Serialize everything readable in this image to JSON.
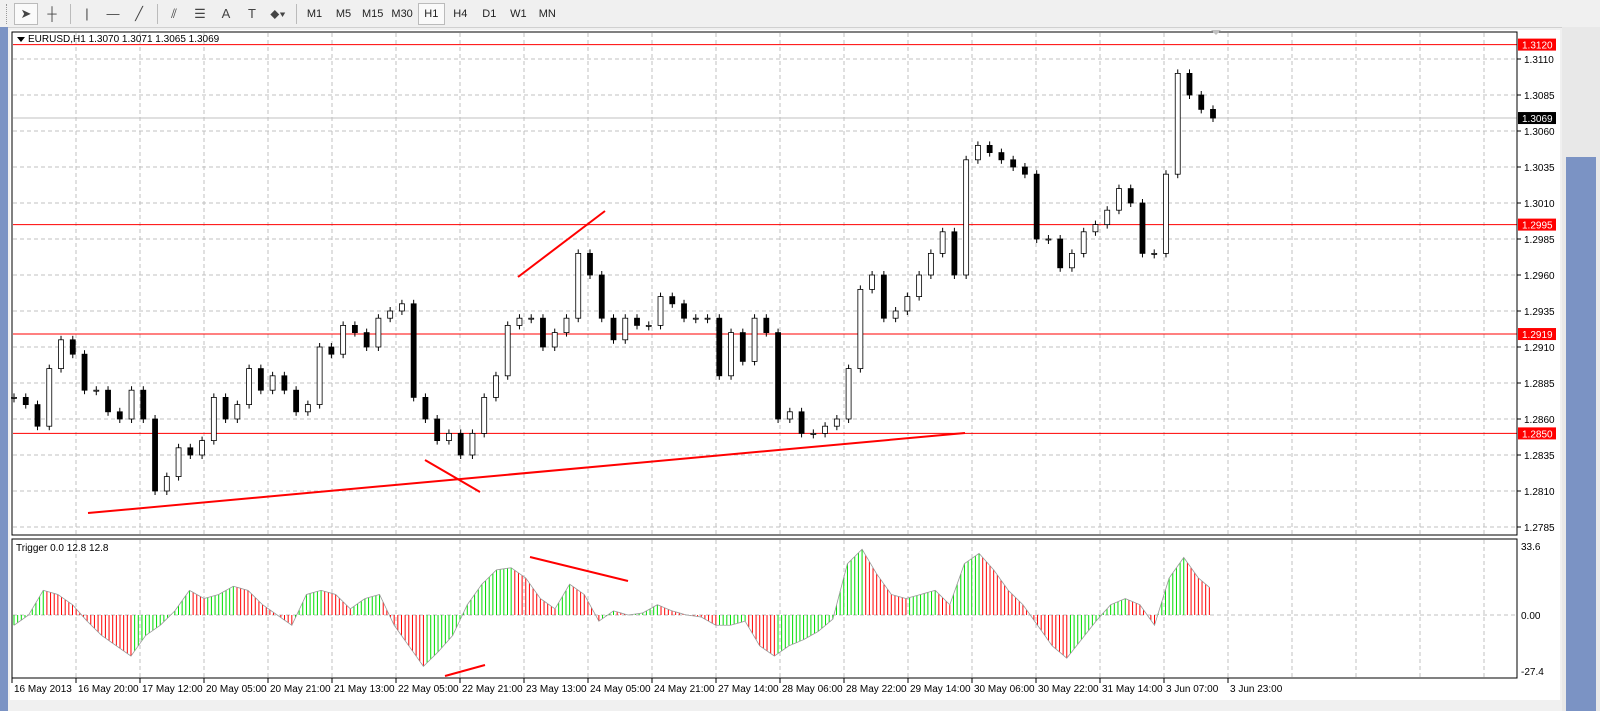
{
  "toolbar": {
    "tools": [
      {
        "name": "cursor-icon",
        "glyph": "➤"
      },
      {
        "name": "crosshair-icon",
        "glyph": "┼"
      },
      {
        "name": "vertical-line-icon",
        "glyph": "|"
      },
      {
        "name": "horizontal-line-icon",
        "glyph": "—"
      },
      {
        "name": "trendline-icon",
        "glyph": "╱"
      },
      {
        "name": "equidistant-channel-icon",
        "glyph": "⫽"
      },
      {
        "name": "fibonacci-icon",
        "glyph": "☰"
      },
      {
        "name": "text-icon",
        "glyph": "A"
      },
      {
        "name": "text-label-icon",
        "glyph": "T"
      },
      {
        "name": "arrows-dropdown-icon",
        "glyph": "⬥▾"
      }
    ],
    "timeframes": [
      "M1",
      "M5",
      "M15",
      "M30",
      "H1",
      "H4",
      "D1",
      "W1",
      "MN"
    ],
    "active_timeframe": "H1"
  },
  "chart_data": [
    {
      "type": "candlestick",
      "title": "EURUSD,H1  1.3070 1.3071 1.3065 1.3069",
      "symbol": "EURUSD",
      "timeframe": "H1",
      "ohlc_last": {
        "open": 1.307,
        "high": 1.3071,
        "low": 1.3065,
        "close": 1.3069
      },
      "ylim": [
        1.2775,
        1.313
      ],
      "y_ticks": [
        "1.3110",
        "1.3085",
        "1.3060",
        "1.3035",
        "1.3010",
        "1.2985",
        "1.2960",
        "1.2935",
        "1.2910",
        "1.2885",
        "1.2860",
        "1.2835",
        "1.2810",
        "1.2785"
      ],
      "x_ticks": [
        "16 May 2013",
        "16 May 20:00",
        "17 May 12:00",
        "20 May 05:00",
        "20 May 21:00",
        "21 May 13:00",
        "22 May 05:00",
        "22 May 21:00",
        "23 May 13:00",
        "24 May 05:00",
        "24 May 21:00",
        "27 May 14:00",
        "28 May 06:00",
        "28 May 22:00",
        "29 May 14:00",
        "30 May 06:00",
        "30 May 22:00",
        "31 May 14:00",
        "3 Jun 07:00",
        "3 Jun 23:00"
      ],
      "grid": true,
      "closes": [
        1.2875,
        1.287,
        1.2855,
        1.2895,
        1.2915,
        1.2905,
        1.288,
        1.288,
        1.2865,
        1.286,
        1.288,
        1.286,
        1.281,
        1.282,
        1.284,
        1.2835,
        1.2845,
        1.2875,
        1.286,
        1.287,
        1.2895,
        1.288,
        1.289,
        1.288,
        1.2865,
        1.287,
        1.291,
        1.2905,
        1.2925,
        1.292,
        1.291,
        1.293,
        1.2935,
        1.294,
        1.2875,
        1.286,
        1.2845,
        1.285,
        1.2835,
        1.285,
        1.2875,
        1.289,
        1.2925,
        1.293,
        1.293,
        1.291,
        1.292,
        1.293,
        1.2975,
        1.296,
        1.293,
        1.2915,
        1.293,
        1.2925,
        1.2925,
        1.2945,
        1.294,
        1.293,
        1.293,
        1.293,
        1.289,
        1.292,
        1.29,
        1.293,
        1.292,
        1.286,
        1.2865,
        1.285,
        1.285,
        1.2855,
        1.286,
        1.2895,
        1.295,
        1.296,
        1.293,
        1.2935,
        1.2945,
        1.296,
        1.2975,
        1.299,
        1.296,
        1.304,
        1.305,
        1.3045,
        1.304,
        1.3035,
        1.303,
        1.2985,
        1.2985,
        1.2965,
        1.2975,
        1.299,
        1.2995,
        1.3005,
        1.302,
        1.301,
        1.2975,
        1.2975,
        1.303,
        1.31,
        1.3085,
        1.3075,
        1.3069
      ],
      "horizontal_levels": [
        {
          "price": "1.3120",
          "color": "#ff0000"
        },
        {
          "price": "1.2995",
          "color": "#ff0000"
        },
        {
          "price": "1.2919",
          "color": "#ff0000"
        },
        {
          "price": "1.2850",
          "color": "#ff0000"
        }
      ],
      "bid_line": {
        "price": "1.3069",
        "color": "#c0c0c0"
      }
    },
    {
      "type": "histogram",
      "title": "Trigger 0.0 12.8 12.8",
      "ylim": [
        -27.4,
        33.6
      ],
      "y_ticks": [
        "33.6",
        "0.00",
        "-27.4"
      ],
      "rising_color": "#00dd00",
      "falling_color": "#ff0000",
      "values": [
        -5,
        0,
        12,
        10,
        5,
        -3,
        -10,
        -15,
        -20,
        -10,
        -5,
        2,
        12,
        8,
        10,
        14,
        12,
        5,
        0,
        -5,
        10,
        12,
        10,
        3,
        8,
        10,
        -5,
        -15,
        -25,
        -18,
        -10,
        5,
        15,
        22,
        23,
        18,
        8,
        3,
        15,
        10,
        -3,
        2,
        0,
        1,
        5,
        2,
        0,
        -1,
        -5,
        -5,
        -3,
        -15,
        -20,
        -15,
        -12,
        -8,
        -2,
        25,
        32,
        20,
        10,
        8,
        10,
        12,
        5,
        25,
        30,
        22,
        12,
        5,
        -5,
        -15,
        -21,
        -12,
        -3,
        5,
        8,
        5,
        -5,
        18,
        28,
        18,
        12
      ]
    }
  ],
  "colors": {
    "level": "#ff0000",
    "trendline": "#ff0000",
    "grid": "#c0c0c0",
    "background": "#ffffff"
  }
}
